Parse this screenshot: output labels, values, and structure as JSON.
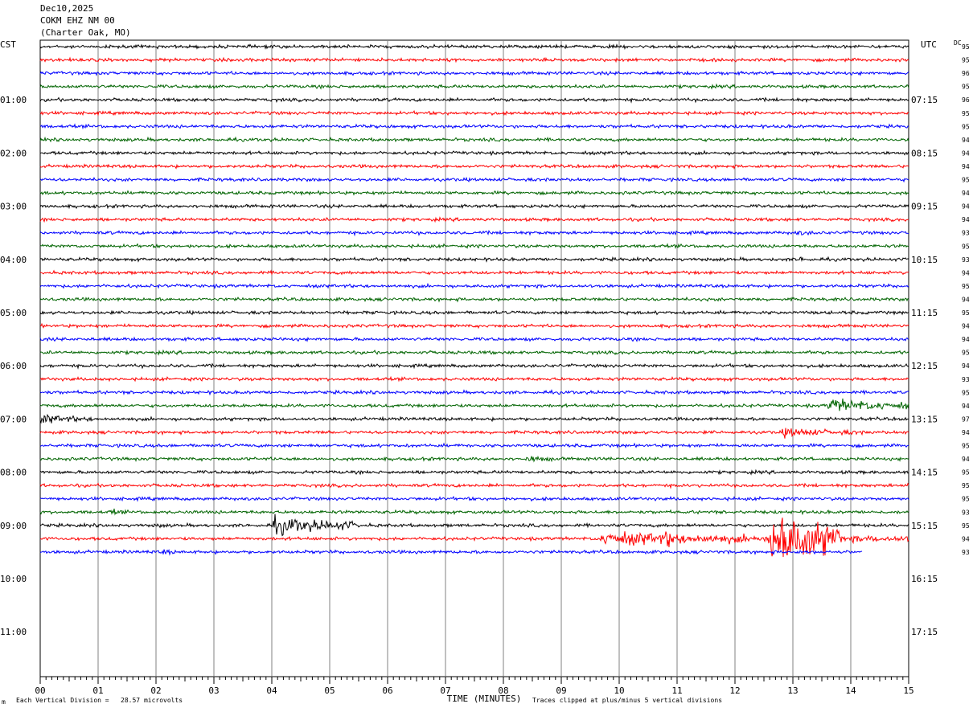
{
  "header": {
    "date": "Dec10,2025",
    "station": "COKM EHZ NM 00",
    "location": "(Charter Oak, MO)"
  },
  "left_timezone": "CST",
  "right_timezone": "UTC",
  "dc_label": "DC",
  "footer": {
    "scale_note": "Each Vertical Division =   28.57 microvolts",
    "clip_note": "Traces clipped at plus/minus 5 vertical divisions",
    "corner_mark": "m"
  },
  "colors": {
    "line1": "#000000",
    "line2": "#ff0000",
    "line3": "#0000ff",
    "line4": "#006400",
    "grid": "#808080"
  },
  "chart_data": {
    "type": "line",
    "title": "",
    "xlabel": "TIME (MINUTES)",
    "xlim": [
      0,
      15
    ],
    "x_ticks": [
      "00",
      "01",
      "02",
      "03",
      "04",
      "05",
      "06",
      "07",
      "08",
      "09",
      "10",
      "11",
      "12",
      "13",
      "14",
      "15"
    ],
    "rows_total": 48,
    "rows_with_data": 39,
    "minutes_per_row": 15,
    "left_hour_labels": [
      "01:00",
      "02:00",
      "03:00",
      "04:00",
      "05:00",
      "06:00",
      "07:00",
      "08:00",
      "09:00",
      "10:00",
      "11:00"
    ],
    "right_hour_labels": [
      "07:15",
      "08:15",
      "09:15",
      "10:15",
      "11:15",
      "12:15",
      "13:15",
      "14:15",
      "15:15",
      "16:15",
      "17:15"
    ],
    "trace_color_cycle": [
      "black",
      "red",
      "blue",
      "green"
    ],
    "dc_offsets": [
      95,
      95,
      96,
      95,
      96,
      95,
      95,
      94,
      94,
      94,
      95,
      94,
      94,
      94,
      93,
      95,
      93,
      94,
      95,
      94,
      95,
      94,
      94,
      95,
      94,
      93,
      95,
      94,
      97,
      94,
      95,
      94,
      95,
      95,
      95,
      93,
      95,
      94,
      93
    ],
    "events": [
      {
        "row": 28,
        "start_min": 0.0,
        "end_min": 0.9,
        "amp": 6
      },
      {
        "row": 27,
        "start_min": 13.6,
        "end_min": 15.0,
        "amp": 9
      },
      {
        "row": 29,
        "start_min": 12.8,
        "end_min": 14.2,
        "amp": 6
      },
      {
        "row": 31,
        "start_min": 8.4,
        "end_min": 8.9,
        "amp": 5
      },
      {
        "row": 35,
        "start_min": 1.2,
        "end_min": 1.6,
        "amp": 4
      },
      {
        "row": 36,
        "start_min": 2.0,
        "end_min": 2.5,
        "amp": 3
      },
      {
        "row": 36,
        "start_min": 4.0,
        "end_min": 5.5,
        "amp": 11
      },
      {
        "row": 37,
        "start_min": 9.6,
        "end_min": 15.0,
        "amp": 8
      },
      {
        "row": 37,
        "start_min": 10.8,
        "end_min": 11.2,
        "amp": 12
      },
      {
        "row": 37,
        "start_min": 12.6,
        "end_min": 13.8,
        "amp": 40
      },
      {
        "row": 38,
        "start_min": 2.1,
        "end_min": 2.5,
        "amp": 4
      },
      {
        "row": 14,
        "start_min": 13.0,
        "end_min": 14.5,
        "amp": 3
      },
      {
        "row": 16,
        "start_min": 13.1,
        "end_min": 13.4,
        "amp": 4
      },
      {
        "row": 24,
        "start_min": 13.0,
        "end_min": 13.3,
        "amp": 3
      }
    ]
  }
}
